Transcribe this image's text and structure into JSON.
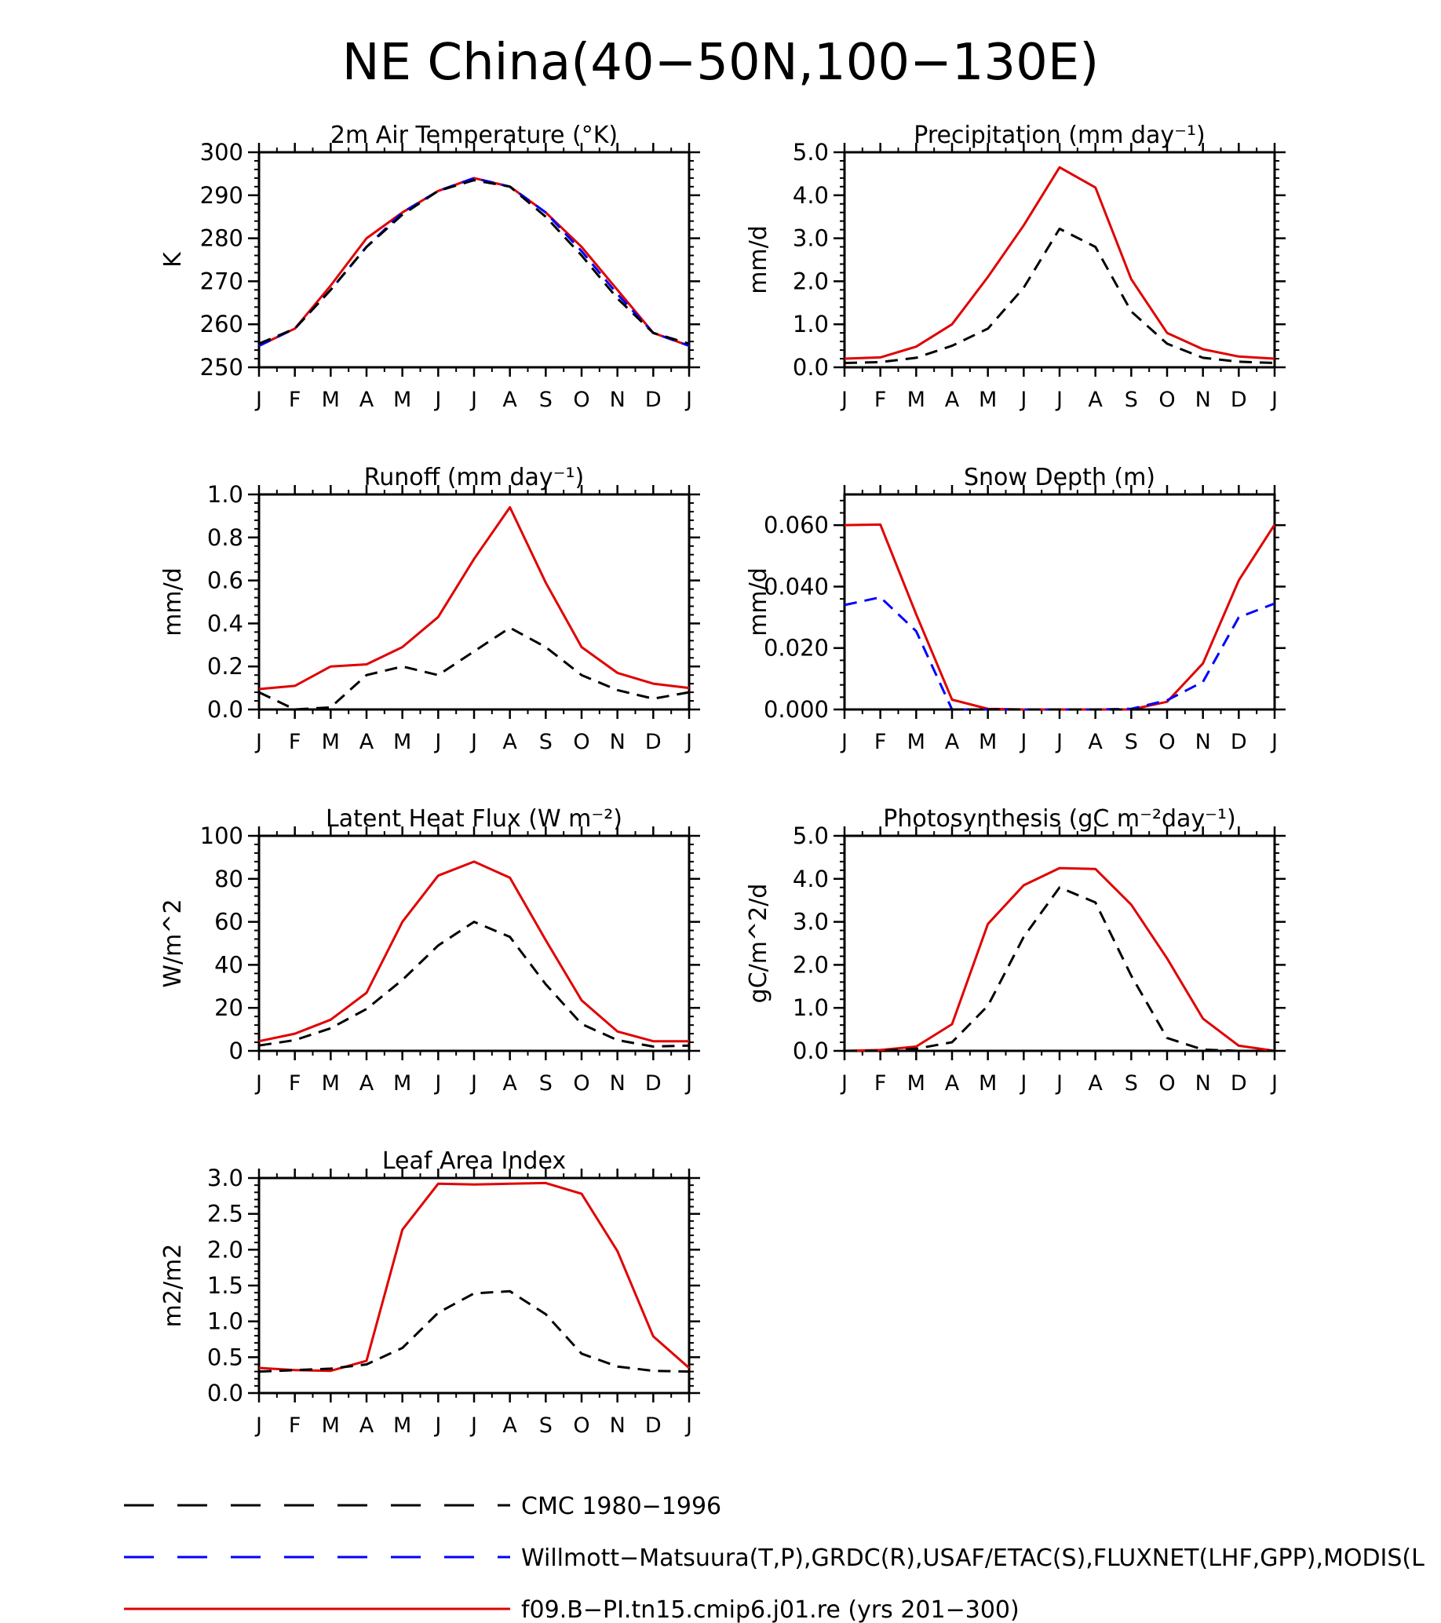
{
  "title": "NE China(40−50N,100−130E)",
  "colors": {
    "obs_cmc": "#000000",
    "obs_other": "#0000ff",
    "model": "#e00000"
  },
  "legend": [
    {
      "key": "cmc",
      "label": "CMC 1980−1996",
      "color": "#000000",
      "style": "dash"
    },
    {
      "key": "obs",
      "label": "Willmott−Matsuura(T,P),GRDC(R),USAF/ETAC(S),FLUXNET(LHF,GPP),MODIS(L",
      "color": "#0000ff",
      "style": "dash"
    },
    {
      "key": "model",
      "label": "f09.B−PI.tn15.cmip6.j01.re (yrs 201−300)",
      "color": "#e00000",
      "style": "solid"
    }
  ],
  "chart_data": [
    {
      "type": "line",
      "title": "2m Air Temperature (°K)",
      "ylabel": "K",
      "categories": [
        "J",
        "F",
        "M",
        "A",
        "M",
        "J",
        "J",
        "A",
        "S",
        "O",
        "N",
        "D",
        "J"
      ],
      "ylim": [
        250,
        300
      ],
      "yticks": [
        "250",
        "260",
        "270",
        "280",
        "290",
        "300"
      ],
      "series": [
        {
          "key": "model",
          "values": [
            255,
            259,
            269,
            280,
            286,
            291,
            294,
            292,
            286,
            278,
            268,
            258,
            255
          ]
        },
        {
          "key": "obs",
          "values": [
            255,
            259,
            268,
            278,
            286,
            291,
            294,
            292,
            286,
            277,
            267,
            258,
            255
          ]
        },
        {
          "key": "cmc",
          "values": [
            255.5,
            259,
            268,
            278,
            285.5,
            291,
            293.5,
            292,
            285,
            276,
            266,
            258,
            255.5
          ]
        }
      ]
    },
    {
      "type": "line",
      "title": "Precipitation (mm day⁻¹)",
      "ylabel": "mm/d",
      "categories": [
        "J",
        "F",
        "M",
        "A",
        "M",
        "J",
        "J",
        "A",
        "S",
        "O",
        "N",
        "D",
        "J"
      ],
      "ylim": [
        0,
        5
      ],
      "yticks": [
        "0.0",
        "1.0",
        "2.0",
        "3.0",
        "4.0",
        "5.0"
      ],
      "series": [
        {
          "key": "model",
          "values": [
            0.2,
            0.23,
            0.48,
            1.0,
            2.1,
            3.3,
            4.65,
            4.18,
            2.05,
            0.8,
            0.42,
            0.25,
            0.2
          ]
        },
        {
          "key": "cmc",
          "values": [
            0.1,
            0.12,
            0.22,
            0.5,
            0.9,
            1.85,
            3.22,
            2.8,
            1.3,
            0.55,
            0.22,
            0.13,
            0.1
          ]
        }
      ]
    },
    {
      "type": "line",
      "title": "Runoff (mm day⁻¹)",
      "ylabel": "mm/d",
      "categories": [
        "J",
        "F",
        "M",
        "A",
        "M",
        "J",
        "J",
        "A",
        "S",
        "O",
        "N",
        "D",
        "J"
      ],
      "ylim": [
        0,
        1
      ],
      "yticks": [
        "0.0",
        "0.2",
        "0.4",
        "0.6",
        "0.8",
        "1.0"
      ],
      "series": [
        {
          "key": "model",
          "values": [
            0.095,
            0.11,
            0.2,
            0.21,
            0.29,
            0.43,
            0.7,
            0.94,
            0.59,
            0.29,
            0.17,
            0.12,
            0.1
          ]
        },
        {
          "key": "cmc",
          "values": [
            0.08,
            0.0,
            0.01,
            0.16,
            0.2,
            0.16,
            0.27,
            0.38,
            0.29,
            0.16,
            0.09,
            0.05,
            0.08
          ]
        }
      ]
    },
    {
      "type": "line",
      "title": "Snow Depth (m)",
      "ylabel": "mm/d",
      "categories": [
        "J",
        "F",
        "M",
        "A",
        "M",
        "J",
        "J",
        "A",
        "S",
        "O",
        "N",
        "D",
        "J"
      ],
      "ylim": [
        0,
        0.07
      ],
      "yticks": [
        "0.000",
        "0.020",
        "0.040",
        "0.060"
      ],
      "series": [
        {
          "key": "model",
          "values": [
            0.06,
            0.0602,
            0.031,
            0.0032,
            0.0002,
            0,
            0,
            0,
            0,
            0.0025,
            0.015,
            0.042,
            0.0602
          ]
        },
        {
          "key": "obs",
          "values": [
            0.034,
            0.0365,
            0.0255,
            0.0,
            0,
            0,
            0,
            0,
            0.0002,
            0.003,
            0.009,
            0.03,
            0.0345
          ]
        },
        {
          "key": "cmc",
          "values": [
            0,
            0,
            0,
            0,
            0,
            0,
            0,
            0,
            0,
            0,
            0,
            0,
            0
          ]
        }
      ]
    },
    {
      "type": "line",
      "title": "Latent Heat Flux (W m⁻²)",
      "ylabel": "W/m^2",
      "categories": [
        "J",
        "F",
        "M",
        "A",
        "M",
        "J",
        "J",
        "A",
        "S",
        "O",
        "N",
        "D",
        "J"
      ],
      "ylim": [
        0,
        100
      ],
      "yticks": [
        "0",
        "20",
        "40",
        "60",
        "80",
        "100"
      ],
      "series": [
        {
          "key": "model",
          "values": [
            4.5,
            8,
            14.5,
            27,
            60,
            81.5,
            88,
            80.5,
            51.5,
            23.5,
            9,
            4.5,
            4.5
          ]
        },
        {
          "key": "cmc",
          "values": [
            2.5,
            5,
            10.5,
            19.5,
            33,
            49,
            60,
            53,
            31,
            12.5,
            5,
            2,
            2.5
          ]
        }
      ]
    },
    {
      "type": "line",
      "title": "Photosynthesis (gC m⁻²day⁻¹)",
      "ylabel": "gC/m^2/d",
      "categories": [
        "J",
        "F",
        "M",
        "A",
        "M",
        "J",
        "J",
        "A",
        "S",
        "O",
        "N",
        "D",
        "J"
      ],
      "ylim": [
        0,
        5
      ],
      "yticks": [
        "0.0",
        "1.0",
        "2.0",
        "3.0",
        "4.0",
        "5.0"
      ],
      "series": [
        {
          "key": "model",
          "values": [
            0.0,
            0.02,
            0.1,
            0.62,
            2.95,
            3.85,
            4.25,
            4.23,
            3.4,
            2.15,
            0.75,
            0.12,
            0.0
          ]
        },
        {
          "key": "cmc",
          "values": [
            0.0,
            0.0,
            0.05,
            0.2,
            1.05,
            2.65,
            3.8,
            3.45,
            1.75,
            0.3,
            0.03,
            0.0,
            0.0
          ]
        }
      ]
    },
    {
      "type": "line",
      "title": "Leaf Area Index",
      "ylabel": "m2/m2",
      "categories": [
        "J",
        "F",
        "M",
        "A",
        "M",
        "J",
        "J",
        "A",
        "S",
        "O",
        "N",
        "D",
        "J"
      ],
      "ylim": [
        0,
        3
      ],
      "yticks": [
        "0.0",
        "0.5",
        "1.0",
        "1.5",
        "2.0",
        "2.5",
        "3.0"
      ],
      "series": [
        {
          "key": "model",
          "values": [
            0.35,
            0.32,
            0.31,
            0.45,
            2.28,
            2.92,
            2.91,
            2.92,
            2.93,
            2.78,
            1.98,
            0.79,
            0.35
          ]
        },
        {
          "key": "cmc",
          "values": [
            0.3,
            0.32,
            0.34,
            0.4,
            0.63,
            1.12,
            1.39,
            1.42,
            1.1,
            0.55,
            0.37,
            0.31,
            0.3
          ]
        }
      ]
    }
  ]
}
